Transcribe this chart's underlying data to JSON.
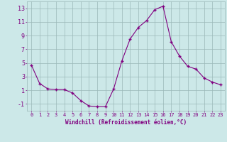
{
  "x": [
    0,
    1,
    2,
    3,
    4,
    5,
    6,
    7,
    8,
    9,
    10,
    11,
    12,
    13,
    14,
    15,
    16,
    17,
    18,
    19,
    20,
    21,
    22,
    23
  ],
  "y": [
    4.7,
    2.0,
    1.2,
    1.1,
    1.1,
    0.6,
    -0.5,
    -1.3,
    -1.4,
    -1.4,
    1.2,
    5.3,
    8.5,
    10.2,
    11.2,
    12.8,
    13.3,
    8.1,
    6.0,
    4.5,
    4.1,
    2.8,
    2.2,
    1.8
  ],
  "line_color": "#800080",
  "marker": "+",
  "marker_size": 3,
  "bg_color": "#cce8e8",
  "grid_color": "#9ab8b8",
  "xlabel": "Windchill (Refroidissement éolien,°C)",
  "xlabel_color": "#800080",
  "tick_color": "#800080",
  "ylim": [
    -2,
    14
  ],
  "yticks": [
    -1,
    1,
    3,
    5,
    7,
    9,
    11,
    13
  ],
  "xlim": [
    -0.5,
    23.5
  ],
  "xticks": [
    0,
    1,
    2,
    3,
    4,
    5,
    6,
    7,
    8,
    9,
    10,
    11,
    12,
    13,
    14,
    15,
    16,
    17,
    18,
    19,
    20,
    21,
    22,
    23
  ],
  "tick_fontsize": 5,
  "xlabel_fontsize": 5.5
}
